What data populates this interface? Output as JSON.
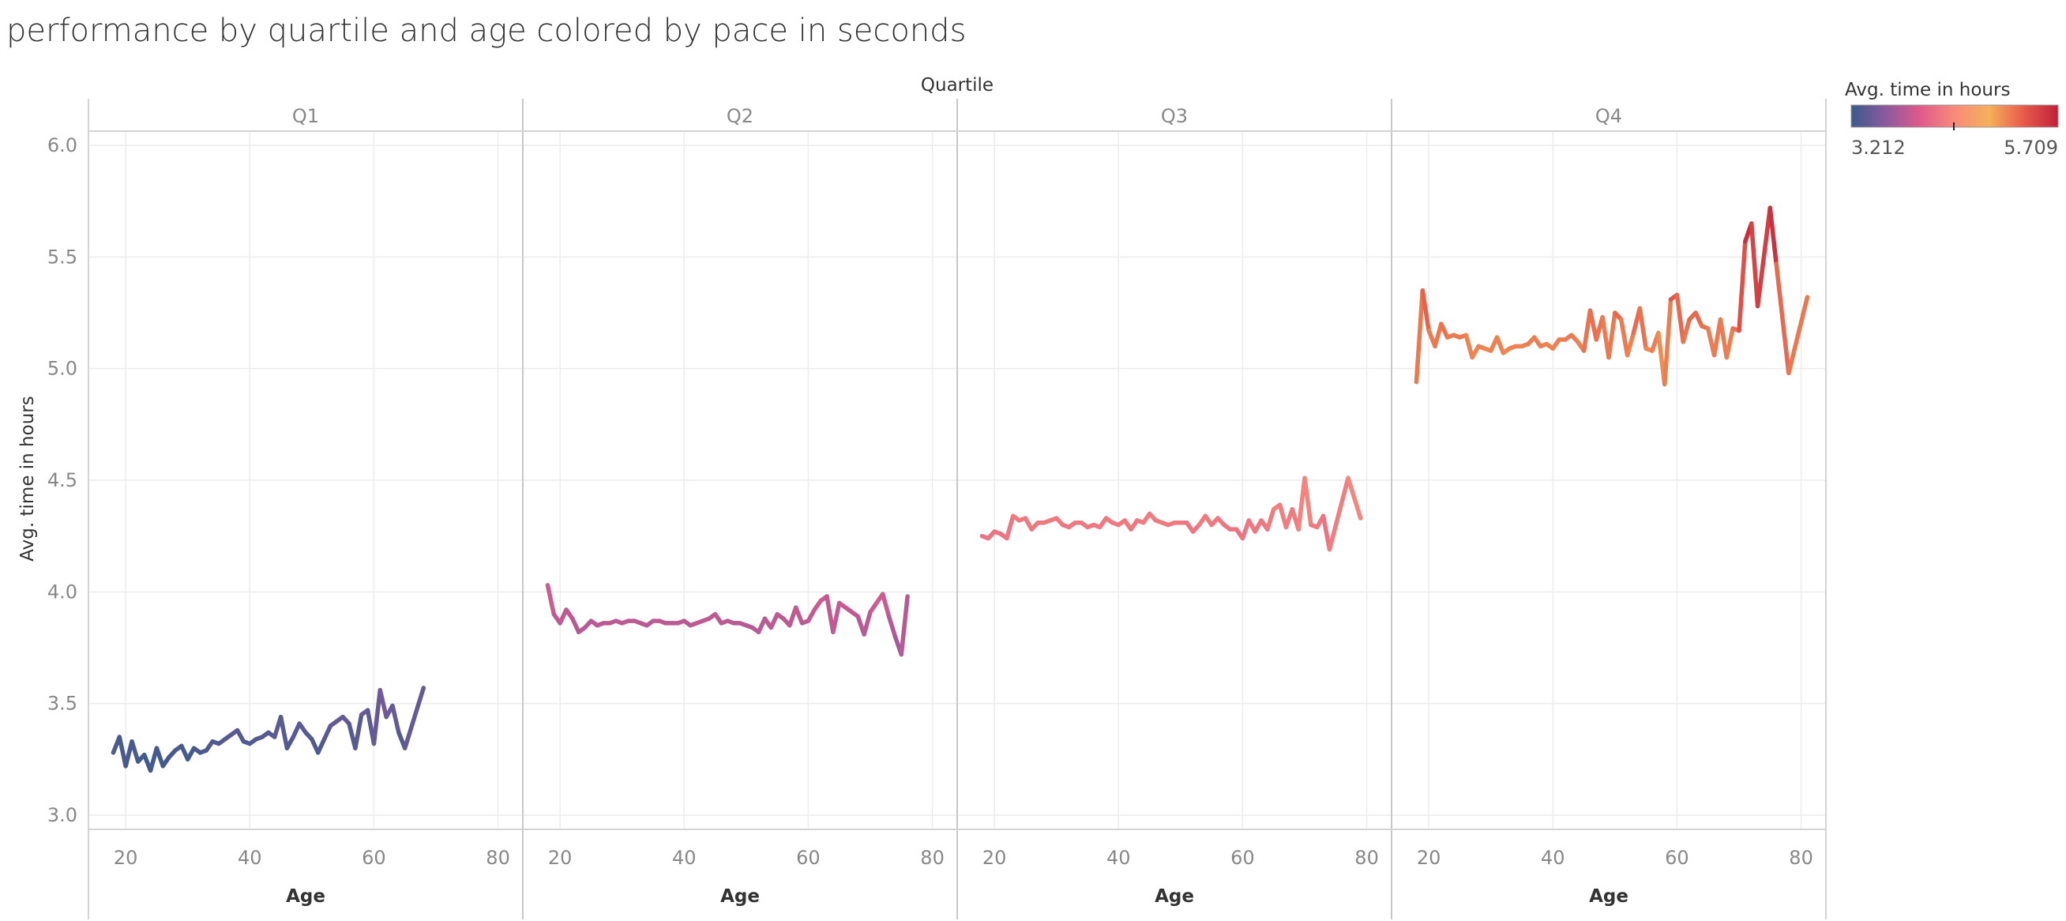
{
  "title": "performance by quartile and age colored by pace in seconds",
  "chart_data": {
    "type": "line",
    "title": "performance by quartile and age colored by pace in seconds",
    "facet_label": "Quartile",
    "xlabel": "Age",
    "ylabel": "Avg. time in hours",
    "ylim": [
      3.0,
      6.0
    ],
    "yticks": [
      "3.0",
      "3.5",
      "4.0",
      "4.5",
      "5.0",
      "5.5",
      "6.0"
    ],
    "xlim": [
      14,
      84
    ],
    "xticks": [
      "20",
      "40",
      "60",
      "80"
    ],
    "grid": true,
    "legend": {
      "title": "Avg. time in hours",
      "min_label": "3.212",
      "max_label": "5.709",
      "min": 3.212,
      "max": 5.709,
      "colors": [
        "#3b5a8c",
        "#8a5a9e",
        "#e05a8a",
        "#f98a7a",
        "#f5b05a",
        "#e85a4a",
        "#c0203a"
      ]
    },
    "panels": [
      {
        "name": "Q1",
        "x": [
          18,
          19,
          20,
          21,
          22,
          23,
          24,
          25,
          26,
          27,
          28,
          29,
          30,
          31,
          32,
          33,
          34,
          35,
          36,
          37,
          38,
          39,
          40,
          41,
          42,
          43,
          44,
          45,
          46,
          47,
          48,
          49,
          50,
          51,
          52,
          53,
          54,
          55,
          56,
          57,
          58,
          59,
          60,
          61,
          62,
          63,
          64,
          65,
          68
        ],
        "y": [
          3.28,
          3.35,
          3.22,
          3.33,
          3.24,
          3.27,
          3.2,
          3.3,
          3.22,
          3.26,
          3.29,
          3.31,
          3.25,
          3.3,
          3.28,
          3.29,
          3.33,
          3.32,
          3.34,
          3.36,
          3.38,
          3.33,
          3.32,
          3.34,
          3.35,
          3.37,
          3.35,
          3.44,
          3.3,
          3.35,
          3.41,
          3.37,
          3.34,
          3.28,
          3.34,
          3.4,
          3.42,
          3.44,
          3.41,
          3.3,
          3.45,
          3.47,
          3.32,
          3.56,
          3.44,
          3.49,
          3.37,
          3.3,
          3.57
        ]
      },
      {
        "name": "Q2",
        "x": [
          18,
          19,
          20,
          21,
          22,
          23,
          24,
          25,
          26,
          27,
          28,
          29,
          30,
          31,
          32,
          33,
          34,
          35,
          36,
          37,
          38,
          39,
          40,
          41,
          42,
          43,
          44,
          45,
          46,
          47,
          48,
          49,
          50,
          51,
          52,
          53,
          54,
          55,
          56,
          57,
          58,
          59,
          60,
          61,
          62,
          63,
          64,
          65,
          66,
          67,
          68,
          69,
          70,
          71,
          72,
          73,
          74,
          75,
          76
        ],
        "y": [
          4.03,
          3.9,
          3.86,
          3.92,
          3.88,
          3.82,
          3.84,
          3.87,
          3.85,
          3.86,
          3.86,
          3.87,
          3.86,
          3.87,
          3.87,
          3.86,
          3.85,
          3.87,
          3.87,
          3.86,
          3.86,
          3.86,
          3.87,
          3.85,
          3.86,
          3.87,
          3.88,
          3.9,
          3.86,
          3.87,
          3.86,
          3.86,
          3.85,
          3.84,
          3.82,
          3.88,
          3.84,
          3.9,
          3.88,
          3.85,
          3.93,
          3.86,
          3.87,
          3.92,
          3.96,
          3.98,
          3.82,
          3.95,
          3.93,
          3.91,
          3.89,
          3.81,
          3.91,
          3.95,
          3.99,
          3.89,
          3.8,
          3.72,
          3.98
        ]
      },
      {
        "name": "Q3",
        "x": [
          18,
          19,
          20,
          21,
          22,
          23,
          24,
          25,
          26,
          27,
          28,
          29,
          30,
          31,
          32,
          33,
          34,
          35,
          36,
          37,
          38,
          39,
          40,
          41,
          42,
          43,
          44,
          45,
          46,
          47,
          48,
          49,
          50,
          51,
          52,
          53,
          54,
          55,
          56,
          57,
          58,
          59,
          60,
          61,
          62,
          63,
          64,
          65,
          66,
          67,
          68,
          69,
          70,
          71,
          72,
          73,
          74,
          77,
          79
        ],
        "y": [
          4.25,
          4.24,
          4.27,
          4.26,
          4.24,
          4.34,
          4.32,
          4.33,
          4.28,
          4.31,
          4.31,
          4.32,
          4.33,
          4.3,
          4.29,
          4.31,
          4.31,
          4.29,
          4.3,
          4.29,
          4.33,
          4.31,
          4.3,
          4.32,
          4.28,
          4.32,
          4.31,
          4.35,
          4.32,
          4.31,
          4.3,
          4.31,
          4.31,
          4.31,
          4.27,
          4.3,
          4.34,
          4.3,
          4.33,
          4.3,
          4.28,
          4.28,
          4.24,
          4.32,
          4.27,
          4.32,
          4.28,
          4.37,
          4.39,
          4.29,
          4.37,
          4.28,
          4.51,
          4.3,
          4.29,
          4.34,
          4.19,
          4.51,
          4.33
        ]
      },
      {
        "name": "Q4",
        "x": [
          18,
          19,
          20,
          21,
          22,
          23,
          24,
          25,
          26,
          27,
          28,
          29,
          30,
          31,
          32,
          33,
          34,
          35,
          36,
          37,
          38,
          39,
          40,
          41,
          42,
          43,
          44,
          45,
          46,
          47,
          48,
          49,
          50,
          51,
          52,
          53,
          54,
          55,
          56,
          57,
          58,
          59,
          60,
          61,
          62,
          63,
          64,
          65,
          66,
          67,
          68,
          69,
          70,
          71,
          72,
          73,
          75,
          76,
          78,
          81
        ],
        "y": [
          4.94,
          5.35,
          5.17,
          5.1,
          5.2,
          5.14,
          5.15,
          5.14,
          5.15,
          5.05,
          5.1,
          5.09,
          5.08,
          5.14,
          5.07,
          5.09,
          5.1,
          5.1,
          5.11,
          5.14,
          5.1,
          5.11,
          5.09,
          5.13,
          5.13,
          5.15,
          5.12,
          5.08,
          5.26,
          5.13,
          5.23,
          5.05,
          5.25,
          5.22,
          5.06,
          5.16,
          5.27,
          5.09,
          5.08,
          5.16,
          4.93,
          5.31,
          5.33,
          5.12,
          5.22,
          5.25,
          5.19,
          5.18,
          5.06,
          5.22,
          5.05,
          5.18,
          5.17,
          5.57,
          5.65,
          5.28,
          5.72,
          5.47,
          4.98,
          5.32
        ]
      }
    ]
  }
}
